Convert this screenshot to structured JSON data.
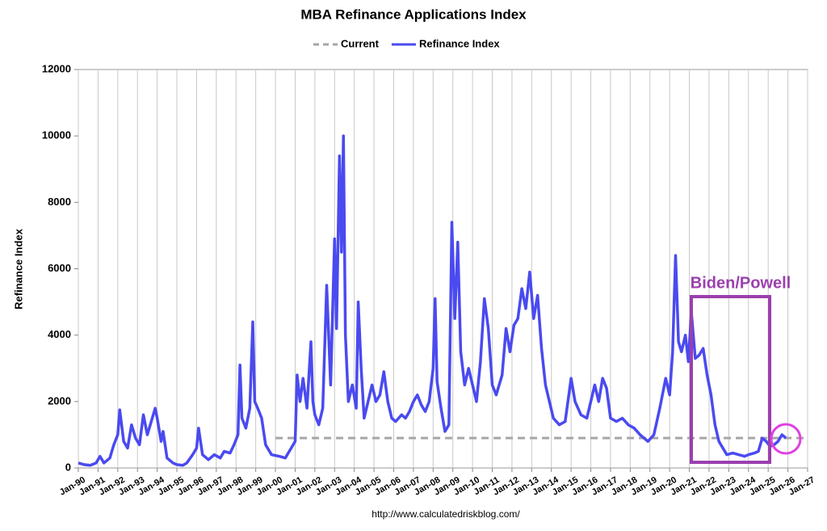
{
  "chart_data": {
    "type": "line",
    "title": "MBA Refinance Applications Index",
    "ylabel": "Refinance Index",
    "source": "http://www.calculatedriskblog.com/",
    "annotation": "Biden/Powell",
    "grid": true,
    "legend": "top",
    "xlim": [
      1990,
      2027
    ],
    "ylim": [
      0,
      12000
    ],
    "yticks": [
      0,
      2000,
      4000,
      6000,
      8000,
      10000,
      12000
    ],
    "xticks": [
      {
        "value": 1990,
        "label": "Jan-90"
      },
      {
        "value": 1991,
        "label": "Jan-91"
      },
      {
        "value": 1992,
        "label": "Jan-92"
      },
      {
        "value": 1993,
        "label": "Jan-93"
      },
      {
        "value": 1994,
        "label": "Jan-94"
      },
      {
        "value": 1995,
        "label": "Jan-95"
      },
      {
        "value": 1996,
        "label": "Jan-96"
      },
      {
        "value": 1997,
        "label": "Jan-97"
      },
      {
        "value": 1998,
        "label": "Jan-98"
      },
      {
        "value": 1999,
        "label": "Jan-99"
      },
      {
        "value": 2000,
        "label": "Jan-00"
      },
      {
        "value": 2001,
        "label": "Jan-01"
      },
      {
        "value": 2002,
        "label": "Jan-02"
      },
      {
        "value": 2003,
        "label": "Jan-03"
      },
      {
        "value": 2004,
        "label": "Jan-04"
      },
      {
        "value": 2005,
        "label": "Jan-05"
      },
      {
        "value": 2006,
        "label": "Jan-06"
      },
      {
        "value": 2007,
        "label": "Jan-07"
      },
      {
        "value": 2008,
        "label": "Jan-08"
      },
      {
        "value": 2009,
        "label": "Jan-09"
      },
      {
        "value": 2010,
        "label": "Jan-10"
      },
      {
        "value": 2011,
        "label": "Jan-11"
      },
      {
        "value": 2012,
        "label": "Jan-12"
      },
      {
        "value": 2013,
        "label": "Jan-13"
      },
      {
        "value": 2014,
        "label": "Jan-14"
      },
      {
        "value": 2015,
        "label": "Jan-15"
      },
      {
        "value": 2016,
        "label": "Jan-16"
      },
      {
        "value": 2017,
        "label": "Jan-17"
      },
      {
        "value": 2018,
        "label": "Jan-18"
      },
      {
        "value": 2019,
        "label": "Jan-19"
      },
      {
        "value": 2020,
        "label": "Jan-20"
      },
      {
        "value": 2021,
        "label": "Jan-21"
      },
      {
        "value": 2022,
        "label": "Jan-22"
      },
      {
        "value": 2023,
        "label": "Jan-23"
      },
      {
        "value": 2024,
        "label": "Jan-24"
      },
      {
        "value": 2025,
        "label": "Jan-25"
      },
      {
        "value": 2026,
        "label": "Jan-26"
      },
      {
        "value": 2027,
        "label": "Jan-27"
      }
    ],
    "series": [
      {
        "name": "Current",
        "color": "#a6a6a6",
        "dashed": true,
        "x": [
          2000,
          2027
        ],
        "values": [
          900,
          900
        ]
      },
      {
        "name": "Refinance Index",
        "color": "#4a4af0",
        "dashed": false,
        "x": [
          1990.0,
          1990.3,
          1990.6,
          1990.9,
          1991.1,
          1991.3,
          1991.6,
          1991.8,
          1992.0,
          1992.1,
          1992.3,
          1992.5,
          1992.7,
          1992.9,
          1993.1,
          1993.3,
          1993.5,
          1993.7,
          1993.9,
          1994.0,
          1994.2,
          1994.3,
          1994.5,
          1994.8,
          1995.0,
          1995.3,
          1995.5,
          1995.8,
          1996.0,
          1996.1,
          1996.3,
          1996.6,
          1996.9,
          1997.2,
          1997.4,
          1997.7,
          1997.9,
          1998.1,
          1998.2,
          1998.3,
          1998.5,
          1998.7,
          1998.85,
          1998.95,
          1999.1,
          1999.3,
          1999.5,
          1999.8,
          2000.2,
          2000.5,
          2000.8,
          2001.0,
          2001.1,
          2001.25,
          2001.4,
          2001.6,
          2001.8,
          2001.9,
          2002.0,
          2002.2,
          2002.4,
          2002.6,
          2002.8,
          2003.0,
          2003.1,
          2003.25,
          2003.35,
          2003.45,
          2003.55,
          2003.7,
          2003.9,
          2004.1,
          2004.2,
          2004.35,
          2004.5,
          2004.7,
          2004.9,
          2005.1,
          2005.3,
          2005.5,
          2005.7,
          2005.9,
          2006.1,
          2006.4,
          2006.6,
          2006.8,
          2007.0,
          2007.2,
          2007.4,
          2007.6,
          2007.8,
          2008.0,
          2008.1,
          2008.2,
          2008.4,
          2008.6,
          2008.8,
          2008.95,
          2009.1,
          2009.25,
          2009.4,
          2009.6,
          2009.8,
          2010.0,
          2010.2,
          2010.4,
          2010.6,
          2010.8,
          2011.0,
          2011.2,
          2011.5,
          2011.7,
          2011.9,
          2012.1,
          2012.3,
          2012.5,
          2012.7,
          2012.9,
          2013.1,
          2013.3,
          2013.5,
          2013.7,
          2013.9,
          2014.1,
          2014.4,
          2014.7,
          2015.0,
          2015.2,
          2015.5,
          2015.8,
          2016.0,
          2016.2,
          2016.4,
          2016.6,
          2016.8,
          2017.0,
          2017.3,
          2017.6,
          2017.9,
          2018.2,
          2018.5,
          2018.9,
          2019.2,
          2019.5,
          2019.8,
          2020.0,
          2020.15,
          2020.3,
          2020.45,
          2020.6,
          2020.8,
          2020.95,
          2021.1,
          2021.3,
          2021.5,
          2021.7,
          2021.9,
          2022.1,
          2022.3,
          2022.5,
          2022.7,
          2022.9,
          2023.2,
          2023.5,
          2023.8,
          2024.0,
          2024.3,
          2024.5,
          2024.7,
          2024.9,
          2025.1,
          2025.3,
          2025.5,
          2025.7,
          2025.9
        ],
        "values": [
          150,
          100,
          80,
          150,
          350,
          150,
          300,
          700,
          1000,
          1750,
          800,
          600,
          1300,
          900,
          700,
          1600,
          1000,
          1400,
          1800,
          1500,
          800,
          1100,
          300,
          150,
          100,
          80,
          150,
          400,
          600,
          1200,
          400,
          250,
          400,
          300,
          500,
          450,
          700,
          1000,
          3100,
          1500,
          1200,
          1800,
          4400,
          2000,
          1800,
          1500,
          700,
          400,
          350,
          300,
          600,
          800,
          2800,
          2000,
          2700,
          1800,
          3800,
          2000,
          1600,
          1300,
          1800,
          5500,
          2500,
          6900,
          4200,
          9400,
          6500,
          10000,
          4000,
          2000,
          2500,
          1800,
          5000,
          3000,
          1500,
          2000,
          2500,
          2000,
          2200,
          2900,
          2000,
          1500,
          1400,
          1600,
          1500,
          1700,
          2000,
          2200,
          1900,
          1700,
          2000,
          3000,
          5100,
          2600,
          1800,
          1100,
          1300,
          7400,
          4500,
          6800,
          3500,
          2500,
          3000,
          2500,
          2000,
          3200,
          5100,
          4200,
          2500,
          2200,
          2800,
          4200,
          3500,
          4300,
          4500,
          5400,
          4800,
          5900,
          4500,
          5200,
          3600,
          2500,
          2000,
          1500,
          1300,
          1400,
          2700,
          2000,
          1600,
          1500,
          2000,
          2500,
          2000,
          2700,
          2400,
          1500,
          1400,
          1500,
          1300,
          1200,
          1000,
          800,
          1000,
          1800,
          2700,
          2200,
          3500,
          6400,
          3800,
          3500,
          4000,
          3200,
          4700,
          3300,
          3400,
          3600,
          2800,
          2200,
          1300,
          800,
          600,
          400,
          450,
          400,
          350,
          400,
          450,
          500,
          900,
          800,
          650,
          700,
          800,
          1000,
          900
        ]
      }
    ]
  }
}
